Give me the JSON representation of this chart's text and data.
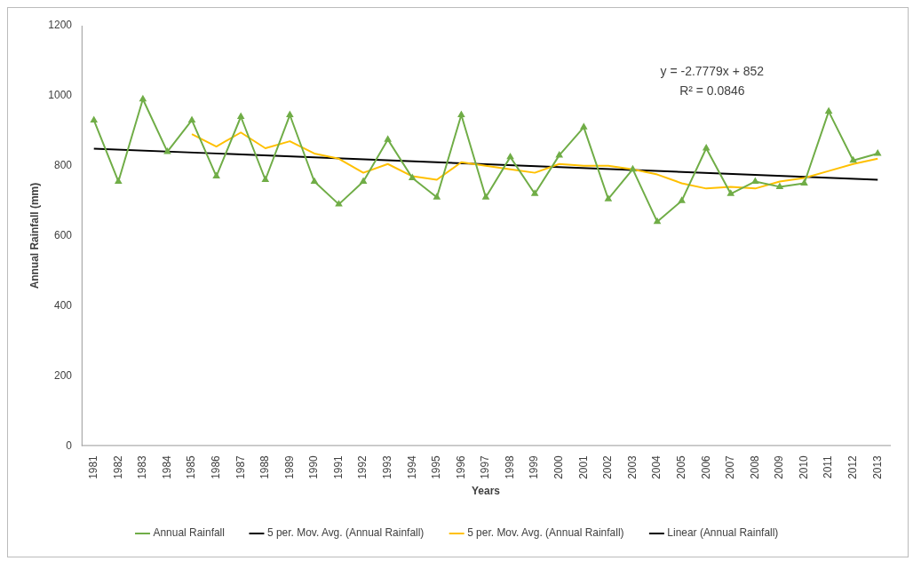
{
  "chart_data": {
    "type": "line",
    "xlabel": "Years",
    "ylabel": "Annual Rainfall (mm)",
    "categories": [
      "1981",
      "1982",
      "1983",
      "1984",
      "1985",
      "1986",
      "1987",
      "1988",
      "1989",
      "1990",
      "1991",
      "1992",
      "1993",
      "1994",
      "1995",
      "1996",
      "1997",
      "1998",
      "1999",
      "2000",
      "2001",
      "2002",
      "2003",
      "2004",
      "2005",
      "2006",
      "2007",
      "2008",
      "2009",
      "2010",
      "2011",
      "2012",
      "2013"
    ],
    "ylim": [
      0,
      1200
    ],
    "yticks": [
      0,
      200,
      400,
      600,
      800,
      1000,
      1200
    ],
    "grid": false,
    "legend": "bottom",
    "annotations": [
      "y = -2.7779x + 852",
      "R² = 0.0846"
    ],
    "series": [
      {
        "name": "Annual Rainfall",
        "color": "#70ad47",
        "marker": "triangle",
        "values": [
          930,
          755,
          990,
          840,
          930,
          770,
          940,
          760,
          945,
          755,
          690,
          755,
          875,
          765,
          710,
          945,
          710,
          825,
          720,
          830,
          910,
          705,
          790,
          640,
          700,
          850,
          720,
          755,
          740,
          750,
          955,
          815,
          835
        ]
      },
      {
        "name": "5 per. Mov. Avg. (Annual Rainfall)",
        "color": "#000000",
        "marker": "none",
        "values": [
          null,
          null,
          null,
          null,
          null,
          null,
          null,
          null,
          null,
          null,
          null,
          null,
          null,
          null,
          null,
          null,
          null,
          null,
          null,
          null,
          null,
          null,
          null,
          null,
          null,
          null,
          null,
          null,
          null,
          null,
          null,
          null,
          null
        ]
      },
      {
        "name": "5 per. Mov. Avg. (Annual Rainfall)",
        "color": "#ffc000",
        "marker": "none",
        "values": [
          null,
          null,
          null,
          null,
          890,
          855,
          895,
          850,
          870,
          835,
          820,
          780,
          805,
          770,
          760,
          810,
          800,
          790,
          780,
          805,
          800,
          800,
          790,
          775,
          750,
          735,
          740,
          735,
          755,
          765,
          785,
          805,
          820
        ]
      },
      {
        "name": "Linear (Annual Rainfall)",
        "type": "line",
        "color": "#000000",
        "marker": "none",
        "values": [
          849,
          null,
          null,
          null,
          null,
          null,
          null,
          null,
          null,
          null,
          null,
          null,
          null,
          null,
          null,
          null,
          null,
          null,
          null,
          null,
          null,
          null,
          null,
          null,
          null,
          null,
          null,
          null,
          null,
          null,
          null,
          null,
          760
        ]
      }
    ]
  }
}
